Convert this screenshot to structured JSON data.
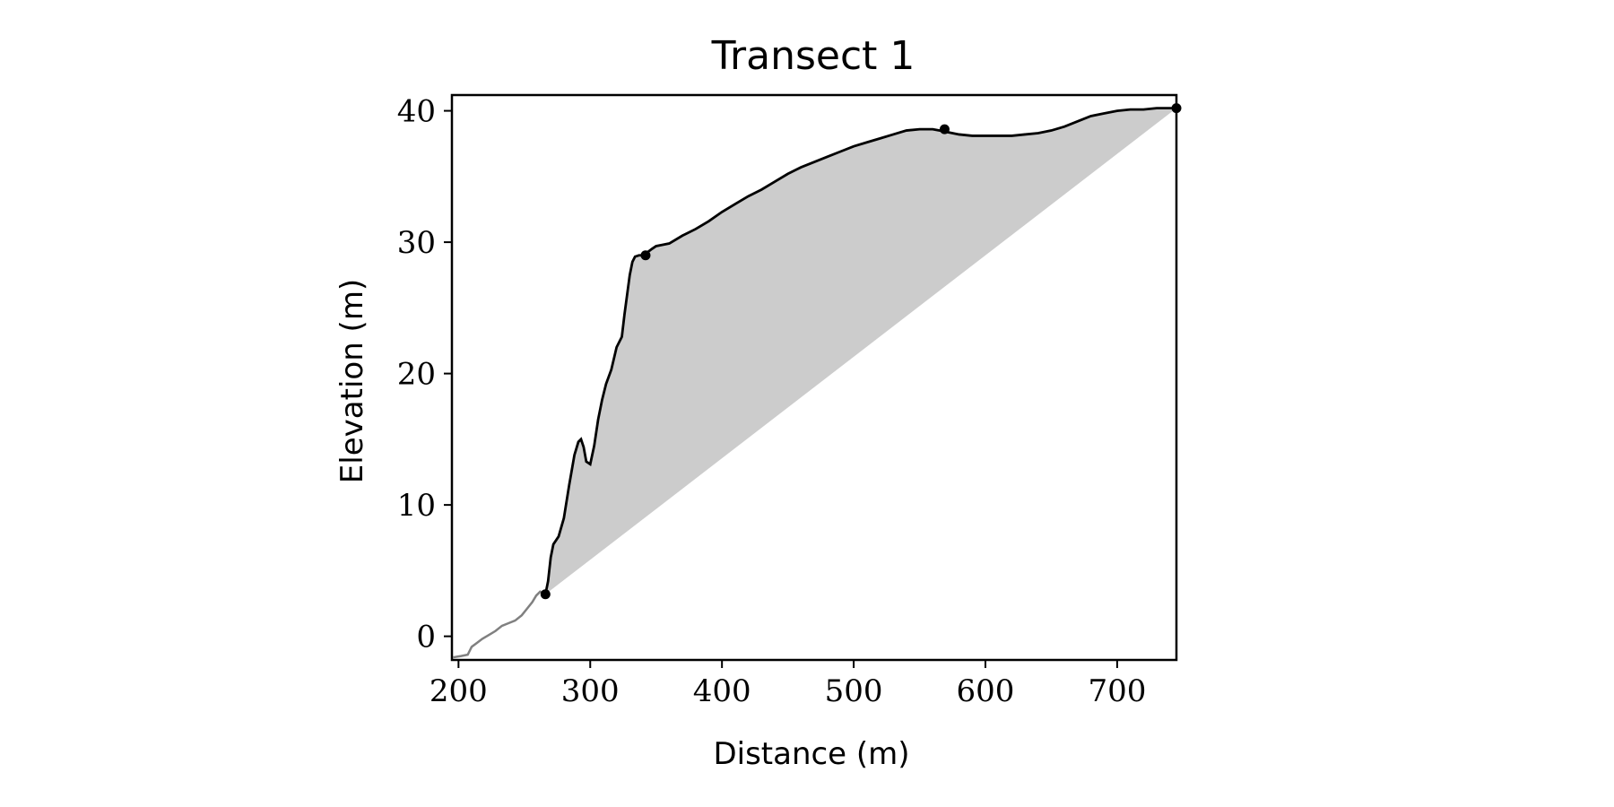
{
  "chart_data": {
    "type": "line",
    "title": "Transect 1",
    "xlabel": "Distance (m)",
    "ylabel": "Elevation (m)",
    "xlim": [
      195,
      745
    ],
    "ylim": [
      -1.8,
      41.2
    ],
    "xticks": [
      200,
      300,
      400,
      500,
      600,
      700
    ],
    "yticks": [
      0,
      10,
      20,
      30,
      40
    ],
    "grid": false,
    "colors": {
      "profile_line": "#000000",
      "seaward_line": "#808080",
      "fill": "#cccccc",
      "markers": "#000000"
    },
    "series": [
      {
        "role": "seaward_profile",
        "x": [
          196,
          202,
          207,
          210,
          214,
          218,
          223,
          228,
          233,
          238,
          243,
          248,
          252,
          256,
          259,
          262,
          266
        ],
        "y": [
          -1.6,
          -1.5,
          -1.4,
          -0.8,
          -0.5,
          -0.2,
          0.1,
          0.4,
          0.8,
          1.0,
          1.2,
          1.6,
          2.1,
          2.6,
          3.1,
          3.4,
          3.2
        ]
      },
      {
        "role": "main_profile",
        "x": [
          266,
          268,
          270,
          272,
          276,
          280,
          284,
          288,
          291,
          293,
          295,
          297,
          300,
          303,
          306,
          309,
          312,
          316,
          320,
          324,
          326,
          328,
          330,
          332,
          334,
          337,
          340,
          343,
          347,
          350,
          355,
          360,
          370,
          380,
          390,
          400,
          410,
          420,
          430,
          440,
          450,
          460,
          470,
          480,
          490,
          500,
          510,
          520,
          530,
          540,
          550,
          560,
          565,
          570,
          575,
          580,
          590,
          600,
          610,
          620,
          630,
          640,
          650,
          660,
          670,
          680,
          690,
          700,
          710,
          720,
          730,
          745
        ],
        "y": [
          3.2,
          4.2,
          6.0,
          7.0,
          7.6,
          9.0,
          11.5,
          13.8,
          14.8,
          15.0,
          14.4,
          13.3,
          13.1,
          14.5,
          16.5,
          18.0,
          19.2,
          20.3,
          22.0,
          22.8,
          24.5,
          26.0,
          27.5,
          28.5,
          28.9,
          29.0,
          29.0,
          29.2,
          29.5,
          29.7,
          29.8,
          29.9,
          30.5,
          31.0,
          31.6,
          32.3,
          32.9,
          33.5,
          34.0,
          34.6,
          35.2,
          35.7,
          36.1,
          36.5,
          36.9,
          37.3,
          37.6,
          37.9,
          38.2,
          38.5,
          38.6,
          38.6,
          38.5,
          38.4,
          38.3,
          38.2,
          38.1,
          38.1,
          38.1,
          38.1,
          38.2,
          38.3,
          38.5,
          38.8,
          39.2,
          39.6,
          39.8,
          40.0,
          40.1,
          40.1,
          40.2,
          40.2
        ]
      }
    ],
    "fill_region": {
      "upper": "main_profile",
      "lower_line": [
        [
          266,
          3.2
        ],
        [
          745,
          40.2
        ]
      ]
    },
    "markers": [
      {
        "x": 266,
        "y": 3.2
      },
      {
        "x": 342,
        "y": 29.0
      },
      {
        "x": 569,
        "y": 38.6
      },
      {
        "x": 745,
        "y": 40.2
      }
    ]
  }
}
